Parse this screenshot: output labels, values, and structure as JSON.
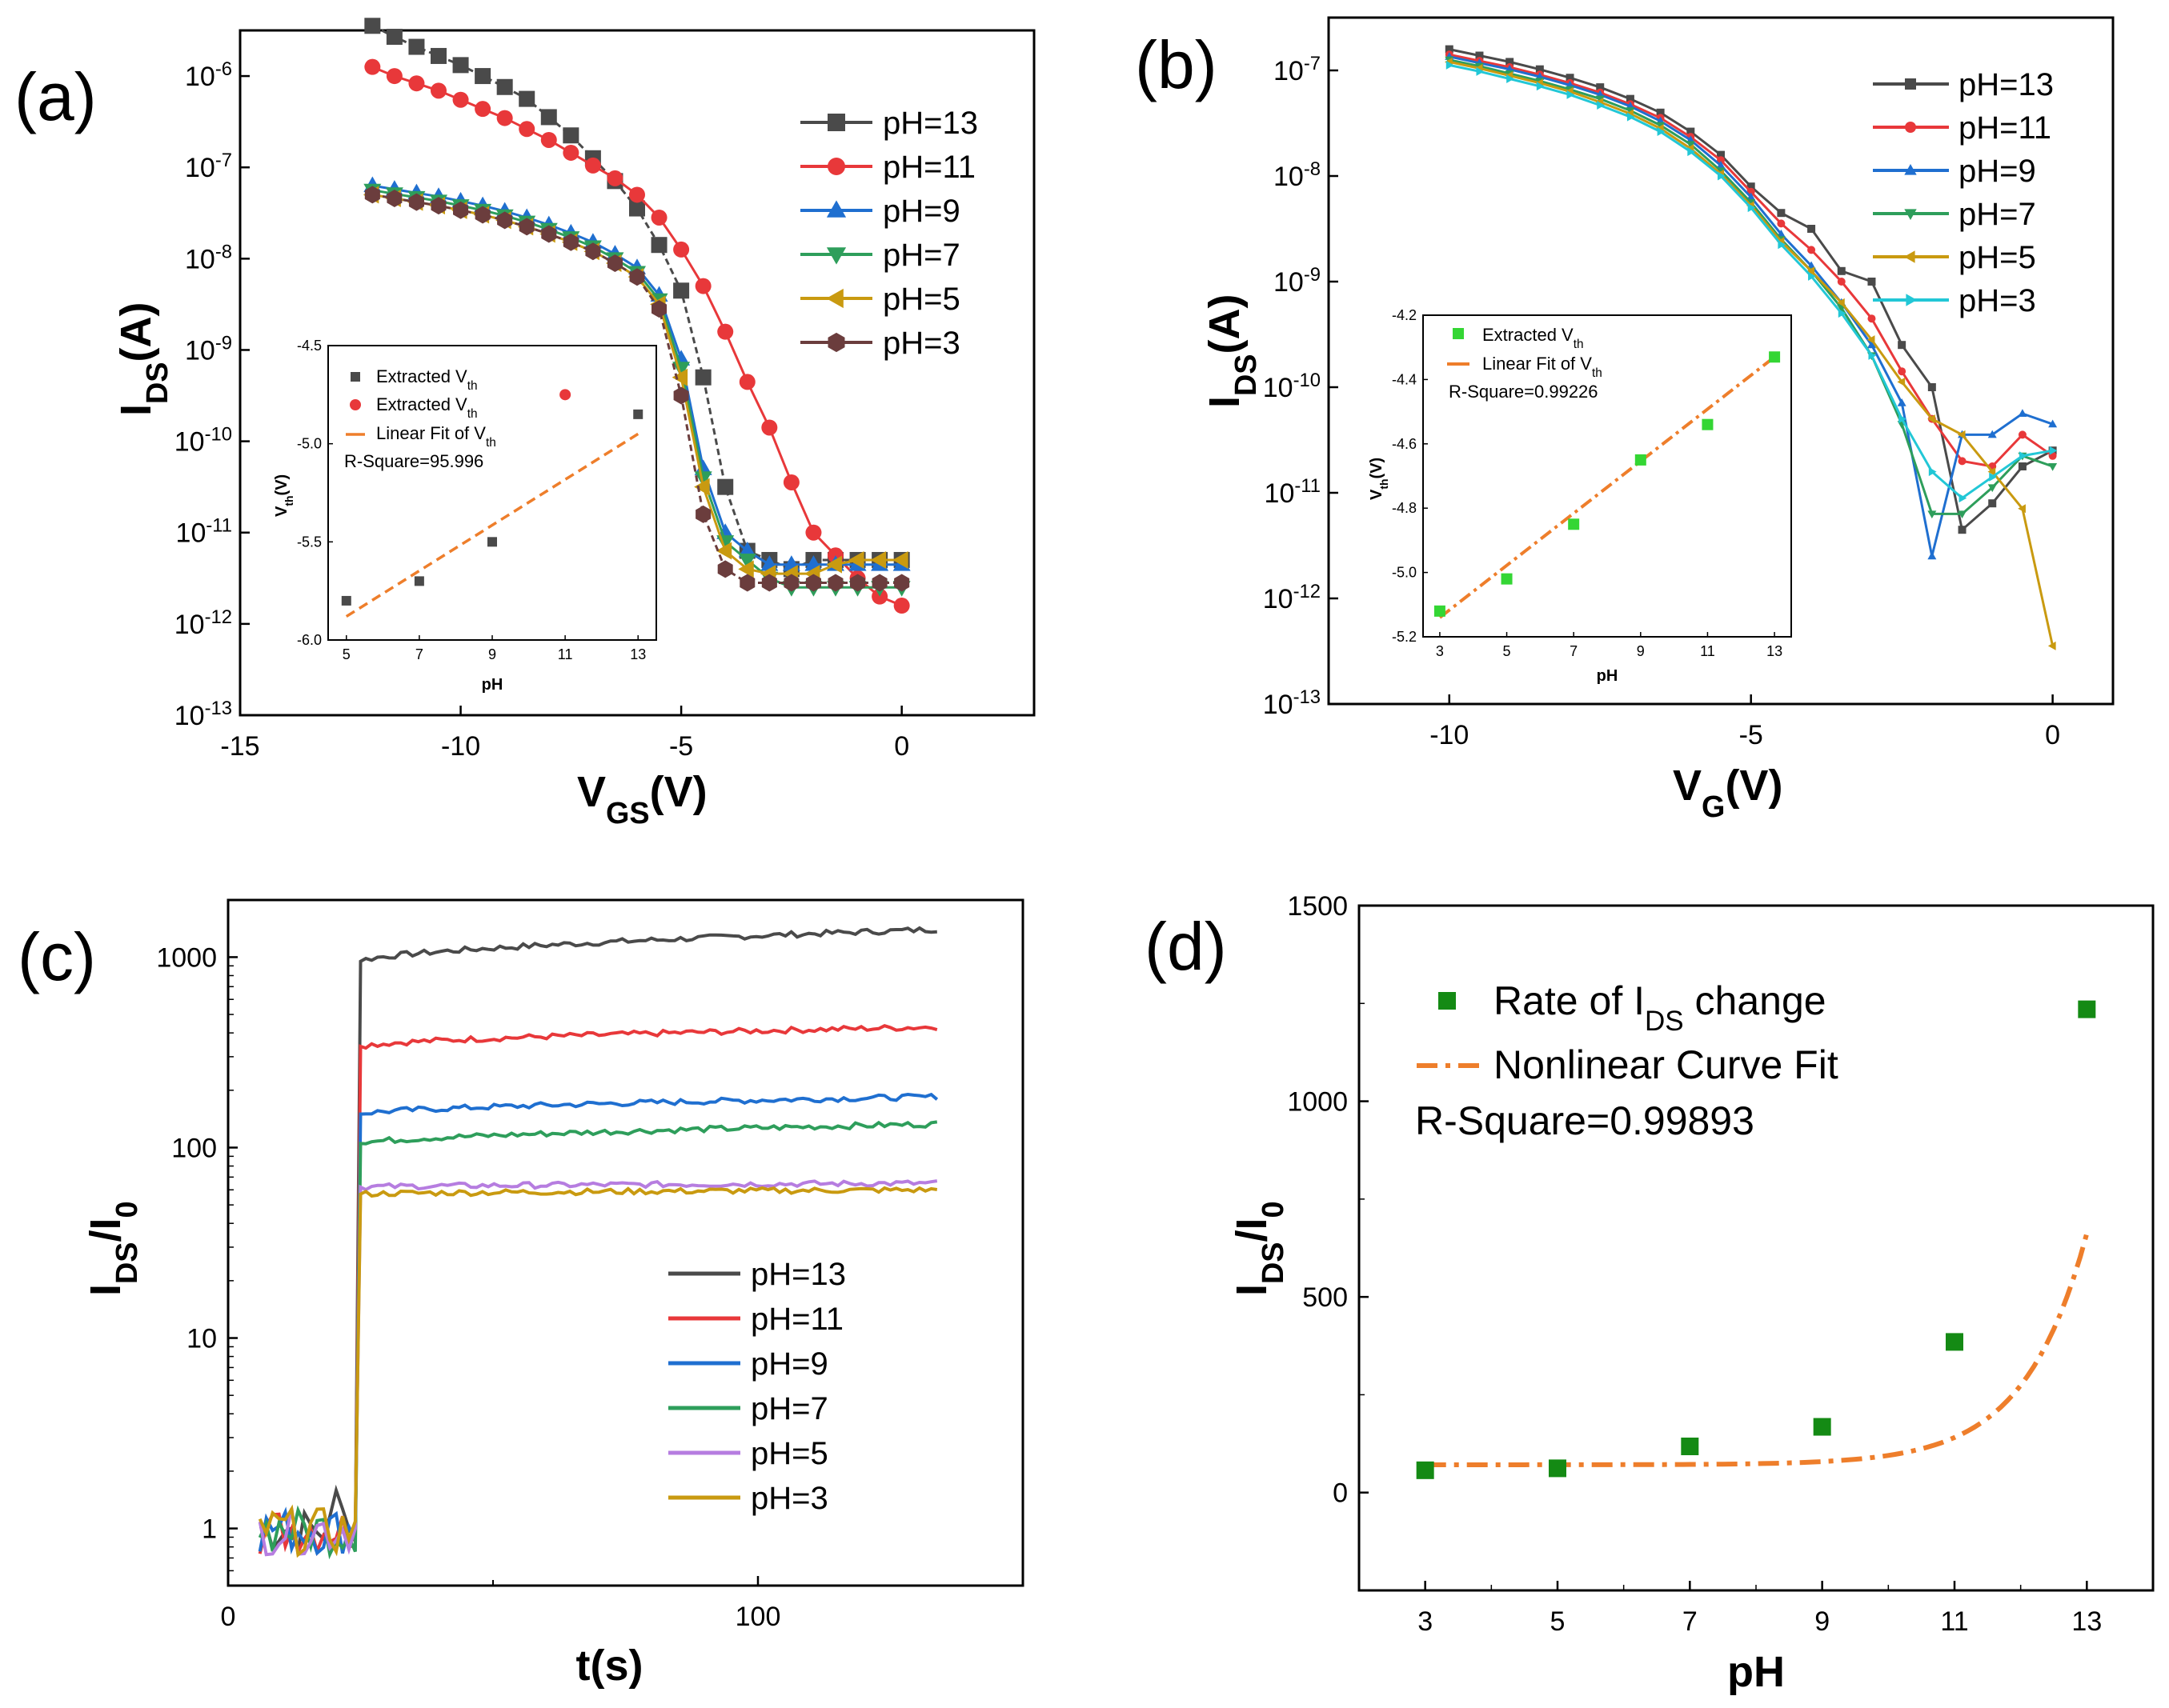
{
  "colors": {
    "pH13": "#4a4a4a",
    "pH11": "#e8383a",
    "pH9": "#1f6fd0",
    "pH7": "#2e9e5b",
    "pH5": "#c99a10",
    "pH3": "#6b3d3d",
    "pH3b": "#22c7d6",
    "pH5c": "#b67de0",
    "fit": "#ee7e2b",
    "inset_green": "#34d634",
    "d_marker": "#148a14"
  },
  "chart_data": [
    {
      "id": "a",
      "type": "line",
      "panel_label": "(a)",
      "title": "",
      "xlabel": "V",
      "xlabel_sub": "GS",
      "xlabel_suffix": "(V)",
      "ylabel": "I",
      "ylabel_sub": "DS",
      "ylabel_suffix": "(A)",
      "yscale": "log",
      "xlim": [
        -15,
        3
      ],
      "ylim_exp": [
        -13,
        -5.5
      ],
      "x_ticks": [
        "-15",
        "-10",
        "-5",
        "0"
      ],
      "y_ticks": [
        "10-13",
        "10-12",
        "10-11",
        "10-10",
        "10-9",
        "10-8",
        "10-7",
        "10-6"
      ],
      "x": [
        -12,
        -11.5,
        -11,
        -10.5,
        -10,
        -9.5,
        -9,
        -8.5,
        -8,
        -7.5,
        -7,
        -6.5,
        -6,
        -5.5,
        -5,
        -4.5,
        -4,
        -3.5,
        -3,
        -2.5,
        -2,
        -1.5,
        -1,
        -0.5,
        0
      ],
      "series": [
        {
          "name": "pH=13",
          "color_key": "pH13",
          "marker": "square",
          "y_exp": [
            -5.45,
            -5.57,
            -5.68,
            -5.78,
            -5.88,
            -6.0,
            -6.12,
            -6.25,
            -6.45,
            -6.65,
            -6.9,
            -7.15,
            -7.45,
            -7.85,
            -8.35,
            -9.3,
            -10.5,
            -11.2,
            -11.3,
            -11.4,
            -11.3,
            -11.3,
            -11.3,
            -11.3,
            -11.3
          ]
        },
        {
          "name": "pH=11",
          "color_key": "pH11",
          "marker": "circle",
          "y_exp": [
            -5.9,
            -6.0,
            -6.08,
            -6.16,
            -6.26,
            -6.36,
            -6.46,
            -6.58,
            -6.7,
            -6.84,
            -6.98,
            -7.12,
            -7.3,
            -7.55,
            -7.9,
            -8.3,
            -8.8,
            -9.35,
            -9.85,
            -10.45,
            -11.0,
            -11.25,
            -11.5,
            -11.7,
            -11.8
          ]
        },
        {
          "name": "pH=9",
          "color_key": "pH9",
          "marker": "triangle-up",
          "y_exp": [
            -7.2,
            -7.24,
            -7.28,
            -7.32,
            -7.37,
            -7.42,
            -7.48,
            -7.55,
            -7.63,
            -7.72,
            -7.82,
            -7.95,
            -8.1,
            -8.4,
            -9.1,
            -10.3,
            -11.0,
            -11.2,
            -11.35,
            -11.35,
            -11.35,
            -11.35,
            -11.35,
            -11.35,
            -11.35
          ]
        },
        {
          "name": "pH=7",
          "color_key": "pH7",
          "marker": "triangle-down",
          "y_exp": [
            -7.25,
            -7.29,
            -7.33,
            -7.37,
            -7.42,
            -7.47,
            -7.53,
            -7.6,
            -7.68,
            -7.77,
            -7.87,
            -8.0,
            -8.15,
            -8.45,
            -9.2,
            -10.4,
            -11.1,
            -11.3,
            -11.5,
            -11.6,
            -11.6,
            -11.6,
            -11.6,
            -11.6,
            -11.6
          ]
        },
        {
          "name": "pH=5",
          "color_key": "pH5",
          "marker": "triangle-left",
          "y_exp": [
            -7.3,
            -7.34,
            -7.38,
            -7.42,
            -7.47,
            -7.52,
            -7.58,
            -7.65,
            -7.73,
            -7.82,
            -7.92,
            -8.05,
            -8.2,
            -8.5,
            -9.3,
            -10.5,
            -11.2,
            -11.4,
            -11.45,
            -11.45,
            -11.45,
            -11.35,
            -11.3,
            -11.3,
            -11.3
          ]
        },
        {
          "name": "pH=3",
          "color_key": "pH3",
          "marker": "hexagon",
          "y_exp": [
            -7.3,
            -7.34,
            -7.38,
            -7.42,
            -7.47,
            -7.52,
            -7.58,
            -7.65,
            -7.73,
            -7.82,
            -7.92,
            -8.05,
            -8.2,
            -8.55,
            -9.5,
            -10.8,
            -11.4,
            -11.55,
            -11.55,
            -11.55,
            -11.55,
            -11.55,
            -11.55,
            -11.55,
            -11.55
          ]
        }
      ],
      "legend_position": "right",
      "inset": {
        "xlabel": "pH",
        "ylabel": "V",
        "ylabel_sub": "th",
        "ylabel_suffix": "(V)",
        "xlim": [
          4.5,
          13.5
        ],
        "ylim": [
          -6.0,
          -4.5
        ],
        "x_ticks": [
          "5",
          "7",
          "9",
          "11",
          "13"
        ],
        "y_ticks": [
          "-6.0",
          "-5.5",
          "-5.0",
          "-4.5"
        ],
        "legend": [
          "Extracted V",
          "Extracted V",
          "Linear Fit of V"
        ],
        "legend_sub": "th",
        "r_square": "R-Square=95.996",
        "points_square": [
          [
            5,
            -5.8
          ],
          [
            7,
            -5.7
          ],
          [
            9,
            -5.5
          ],
          [
            13,
            -4.85
          ]
        ],
        "points_circle": [
          [
            11,
            -4.75
          ]
        ],
        "fit_line": [
          [
            5,
            -5.88
          ],
          [
            13,
            -4.95
          ]
        ]
      }
    },
    {
      "id": "b",
      "type": "line",
      "panel_label": "(b)",
      "title": "",
      "xlabel": "V",
      "xlabel_sub": "G",
      "xlabel_suffix": "(V)",
      "ylabel": "I",
      "ylabel_sub": "DS",
      "ylabel_suffix": "(A)",
      "yscale": "log",
      "xlim": [
        -12,
        1
      ],
      "ylim_exp": [
        -13,
        -6.5
      ],
      "x_ticks": [
        "-10",
        "-5",
        "0"
      ],
      "y_ticks": [
        "10-13",
        "10-12",
        "10-11",
        "10-10",
        "10-9",
        "10-8",
        "10-7"
      ],
      "x": [
        -10,
        -9.5,
        -9,
        -8.5,
        -8,
        -7.5,
        -7,
        -6.5,
        -6,
        -5.5,
        -5,
        -4.5,
        -4,
        -3.5,
        -3,
        -2.5,
        -2,
        -1.5,
        -1,
        -0.5,
        0
      ],
      "series": [
        {
          "name": "pH=13",
          "color_key": "pH13",
          "marker": "small-square",
          "y_exp": [
            -6.8,
            -6.86,
            -6.92,
            -6.99,
            -7.07,
            -7.16,
            -7.27,
            -7.4,
            -7.58,
            -7.8,
            -8.1,
            -8.35,
            -8.5,
            -8.9,
            -9.0,
            -9.6,
            -10.0,
            -11.35,
            -11.1,
            -10.75,
            -10.6
          ]
        },
        {
          "name": "pH=11",
          "color_key": "pH11",
          "marker": "small-circle",
          "y_exp": [
            -6.85,
            -6.91,
            -6.97,
            -7.04,
            -7.12,
            -7.21,
            -7.32,
            -7.45,
            -7.63,
            -7.85,
            -8.15,
            -8.45,
            -8.7,
            -9.0,
            -9.35,
            -9.85,
            -10.3,
            -10.7,
            -10.75,
            -10.45,
            -10.65
          ]
        },
        {
          "name": "pH=9",
          "color_key": "pH9",
          "marker": "small-triangle-up",
          "y_exp": [
            -6.87,
            -6.93,
            -6.99,
            -7.06,
            -7.14,
            -7.23,
            -7.34,
            -7.48,
            -7.66,
            -7.9,
            -8.2,
            -8.55,
            -8.85,
            -9.2,
            -9.6,
            -10.15,
            -11.6,
            -10.45,
            -10.45,
            -10.25,
            -10.35
          ]
        },
        {
          "name": "pH=7",
          "color_key": "pH7",
          "marker": "small-triangle-down",
          "y_exp": [
            -6.9,
            -6.96,
            -7.03,
            -7.1,
            -7.18,
            -7.27,
            -7.38,
            -7.52,
            -7.7,
            -7.95,
            -8.25,
            -8.6,
            -8.9,
            -9.25,
            -9.7,
            -10.35,
            -11.2,
            -11.2,
            -10.95,
            -10.65,
            -10.75
          ]
        },
        {
          "name": "pH=5",
          "color_key": "pH5",
          "marker": "small-triangle-left",
          "y_exp": [
            -6.92,
            -6.98,
            -7.05,
            -7.12,
            -7.2,
            -7.3,
            -7.41,
            -7.55,
            -7.74,
            -7.98,
            -8.28,
            -8.62,
            -8.9,
            -9.2,
            -9.55,
            -9.95,
            -10.3,
            -10.45,
            -10.8,
            -11.15,
            -12.45
          ]
        },
        {
          "name": "pH=3",
          "color_key": "pH3b",
          "marker": "small-triangle-right",
          "y_exp": [
            -6.95,
            -7.01,
            -7.08,
            -7.15,
            -7.23,
            -7.33,
            -7.44,
            -7.58,
            -7.77,
            -8.0,
            -8.3,
            -8.65,
            -8.95,
            -9.3,
            -9.7,
            -10.3,
            -10.8,
            -11.05,
            -10.85,
            -10.65,
            -10.6
          ]
        }
      ],
      "legend_position": "right",
      "inset": {
        "xlabel": "pH",
        "ylabel": "V",
        "ylabel_sub": "th",
        "ylabel_suffix": "(V)",
        "xlim": [
          2.5,
          13.5
        ],
        "ylim": [
          -5.2,
          -4.2
        ],
        "x_ticks": [
          "3",
          "5",
          "7",
          "9",
          "11",
          "13"
        ],
        "y_ticks": [
          "-5.2",
          "-5.0",
          "-4.8",
          "-4.6",
          "-4.4",
          "-4.2"
        ],
        "legend": [
          "Extracted V",
          "Linear Fit of V"
        ],
        "legend_sub": "th",
        "r_square": "R-Square=0.99226",
        "points": [
          [
            3,
            -5.12
          ],
          [
            5,
            -5.02
          ],
          [
            7,
            -4.85
          ],
          [
            9,
            -4.65
          ],
          [
            11,
            -4.54
          ],
          [
            13,
            -4.33
          ]
        ],
        "fit_line": [
          [
            3,
            -5.14
          ],
          [
            13,
            -4.33
          ]
        ]
      }
    },
    {
      "id": "c",
      "type": "line",
      "panel_label": "(c)",
      "title": "",
      "xlabel": "t(s)",
      "ylabel": "I",
      "ylabel_sub": "DS",
      "ylabel_mid": "/I",
      "ylabel_sub2": "0",
      "yscale": "log",
      "xlim": [
        0,
        150
      ],
      "ylim_exp": [
        -0.3,
        3.3
      ],
      "x_ticks": [
        "0",
        "100"
      ],
      "y_ticks": [
        "1",
        "10",
        "100",
        "1000"
      ],
      "step_time": 25,
      "series": [
        {
          "name": "pH=13",
          "color_key": "pH13",
          "start": 950,
          "end": 1400
        },
        {
          "name": "pH=11",
          "color_key": "pH11",
          "start": 340,
          "end": 430
        },
        {
          "name": "pH=9",
          "color_key": "pH9",
          "start": 150,
          "end": 185
        },
        {
          "name": "pH=7",
          "color_key": "pH7",
          "start": 105,
          "end": 133
        },
        {
          "name": "pH=5",
          "color_key": "pH5c",
          "start": 62,
          "end": 65
        },
        {
          "name": "pH=3",
          "color_key": "pH5",
          "start": 57,
          "end": 60
        }
      ],
      "t_end": 134,
      "legend_position": "bottom-right"
    },
    {
      "id": "d",
      "type": "scatter",
      "panel_label": "(d)",
      "title": "",
      "xlabel": "pH",
      "ylabel": "I",
      "ylabel_sub": "DS",
      "ylabel_mid": "/I",
      "ylabel_sub2": "0",
      "xlim": [
        2,
        14
      ],
      "ylim": [
        -250,
        1500
      ],
      "x_ticks": [
        "3",
        "5",
        "7",
        "9",
        "11",
        "13"
      ],
      "y_ticks": [
        "0",
        "500",
        "1000",
        "1500"
      ],
      "points": [
        [
          3,
          57
        ],
        [
          5,
          62
        ],
        [
          7,
          118
        ],
        [
          9,
          168
        ],
        [
          11,
          385
        ],
        [
          13,
          1235
        ]
      ],
      "fit_curve": {
        "a": 71,
        "b": 0.000545,
        "k": 1.069
      },
      "legend": [
        "Rate of I",
        " change",
        "Nonlinear Curve Fit"
      ],
      "legend_sub": "DS",
      "r_square": "R-Square=0.99893",
      "legend_position": "top-left"
    }
  ]
}
